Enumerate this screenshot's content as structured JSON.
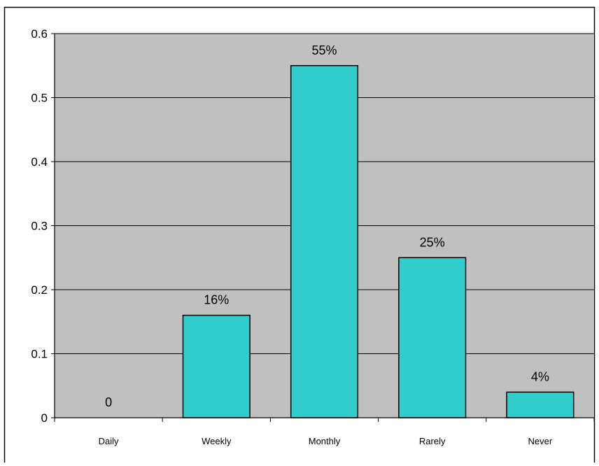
{
  "chart_data": {
    "type": "bar",
    "title": "",
    "xlabel": "",
    "ylabel": "",
    "categories": [
      "Daily",
      "Weekly",
      "Monthly",
      "Rarely",
      "Never"
    ],
    "values": [
      0,
      0.16,
      0.55,
      0.25,
      0.04
    ],
    "data_labels": [
      "0",
      "16%",
      "55%",
      "25%",
      "4%"
    ],
    "ylim": [
      0,
      0.6
    ],
    "yticks": [
      0,
      0.1,
      0.2,
      0.3,
      0.4,
      0.5,
      0.6
    ],
    "ytick_labels": [
      "0",
      "0.1",
      "0.2",
      "0.3",
      "0.4",
      "0.5",
      "0.6"
    ],
    "grid": true,
    "legend": "none",
    "colors": {
      "bar_fill": "#33cccc",
      "bar_stroke": "#000000",
      "plot_background": "#c0c0c0",
      "gridline": "#000000",
      "page_background": "#ffffff"
    }
  }
}
